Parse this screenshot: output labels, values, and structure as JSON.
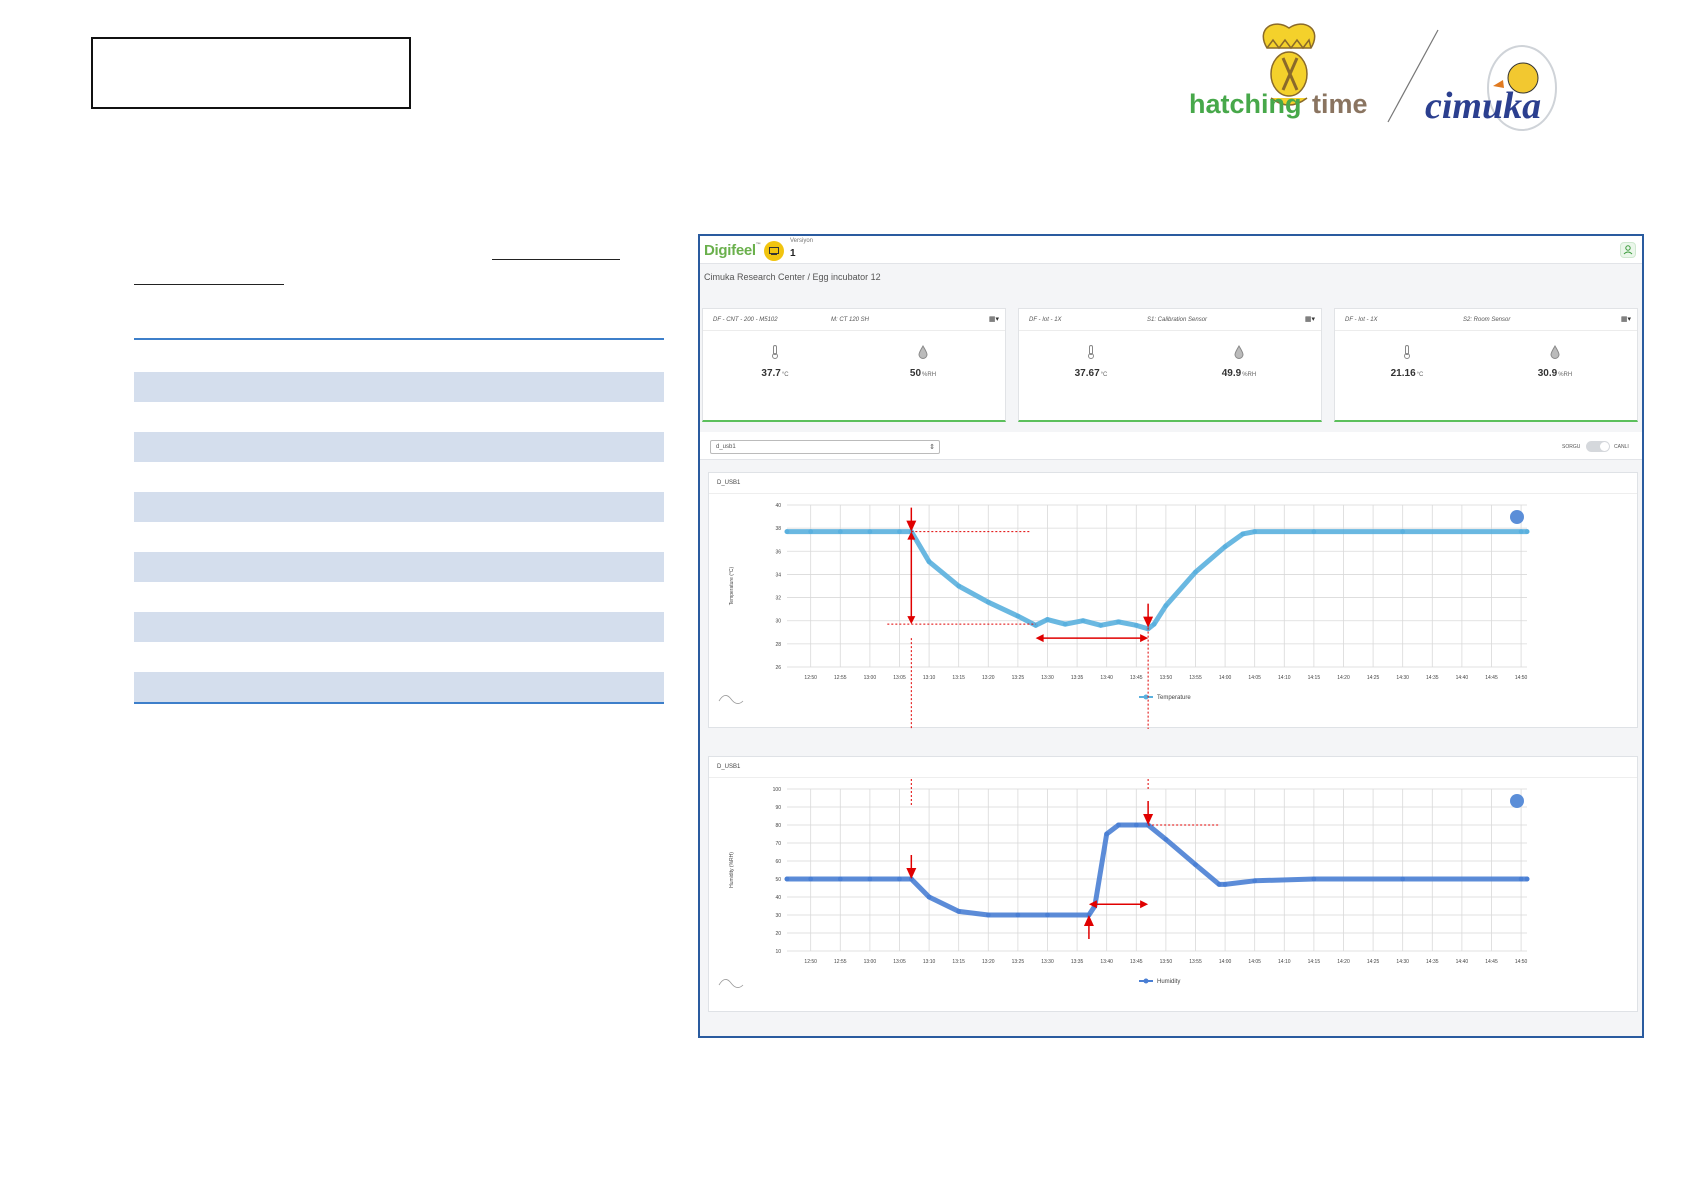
{
  "logos": {
    "hatching_left": "hatching",
    "hatching_right": "time",
    "cimuka": "cimuka"
  },
  "dashboard": {
    "brand": "Digifeel",
    "brand_tm": "™",
    "version_label": "Versiyon",
    "version_value": "1",
    "breadcrumb": "Cimuka Research Center / Egg incubator 12",
    "menu_icon": "grid-icon",
    "cards": [
      {
        "id": "DF - CNT - 200 - M5102",
        "name": "M: CT 120 SH",
        "temp": "37.7",
        "temp_unit": "°C",
        "hum": "50",
        "hum_unit": "%RH"
      },
      {
        "id": "DF - Iot - 1X",
        "name": "S1: Calibration Sensor",
        "temp": "37.67",
        "temp_unit": "°C",
        "hum": "49.9",
        "hum_unit": "%RH"
      },
      {
        "id": "DF - Iot - 1X",
        "name": "S2: Room Sensor",
        "temp": "21.16",
        "temp_unit": "°C",
        "hum": "30.9",
        "hum_unit": "%RH"
      }
    ],
    "select_value": "d_usb1",
    "toggle_left": "SORGU",
    "toggle_right": "CANLI",
    "temp_panel_title": "D_USB1",
    "hum_panel_title": "D_USB1"
  },
  "colors": {
    "temperature_series": "#5ab0de",
    "humidity_series": "#4a7fd4",
    "annotation": "#e00000",
    "table_shade": "#d4deed",
    "table_rule": "#3d7fca"
  },
  "chart_data": [
    {
      "type": "line",
      "ylabel": "Temperature (°C)",
      "ylim": [
        26,
        40
      ],
      "yticks": [
        "40",
        "38",
        "36",
        "34",
        "32",
        "30",
        "28",
        "26"
      ],
      "categories": [
        "12:50",
        "12:55",
        "13:00",
        "13:05",
        "13:10",
        "13:15",
        "13:20",
        "13:25",
        "13:30",
        "13:35",
        "13:40",
        "13:45",
        "13:50",
        "13:55",
        "14:00",
        "14:05",
        "14:10",
        "14:15",
        "14:20",
        "14:25",
        "14:30",
        "14:35",
        "14:40",
        "14:45",
        "14:50"
      ],
      "series": [
        {
          "name": "Temperature",
          "x": [
            "12:46",
            "12:50",
            "12:55",
            "13:00",
            "13:05",
            "13:07",
            "13:10",
            "13:15",
            "13:20",
            "13:25",
            "13:28",
            "13:30",
            "13:33",
            "13:36",
            "13:39",
            "13:42",
            "13:45",
            "13:47",
            "13:48",
            "13:50",
            "13:55",
            "14:00",
            "14:03",
            "14:05",
            "14:15",
            "14:30",
            "14:50",
            "14:51"
          ],
          "values": [
            37.7,
            37.7,
            37.7,
            37.7,
            37.7,
            37.7,
            35.1,
            33.0,
            31.6,
            30.4,
            29.6,
            30.1,
            29.7,
            30.0,
            29.6,
            29.9,
            29.6,
            29.3,
            29.7,
            31.3,
            34.2,
            36.4,
            37.5,
            37.7,
            37.7,
            37.7,
            37.7,
            37.7
          ]
        }
      ]
    },
    {
      "type": "line",
      "ylabel": "Humidity (%RH)",
      "ylim": [
        10,
        100
      ],
      "yticks": [
        "100",
        "90",
        "80",
        "70",
        "60",
        "50",
        "40",
        "30",
        "20",
        "10"
      ],
      "categories": [
        "12:50",
        "12:55",
        "13:00",
        "13:05",
        "13:10",
        "13:15",
        "13:20",
        "13:25",
        "13:30",
        "13:35",
        "13:40",
        "13:45",
        "13:50",
        "13:55",
        "14:00",
        "14:05",
        "14:10",
        "14:15",
        "14:20",
        "14:25",
        "14:30",
        "14:35",
        "14:40",
        "14:45",
        "14:50"
      ],
      "series": [
        {
          "name": "Humidity",
          "x": [
            "12:46",
            "12:50",
            "12:55",
            "13:00",
            "13:05",
            "13:07",
            "13:10",
            "13:15",
            "13:20",
            "13:25",
            "13:30",
            "13:37",
            "13:38",
            "13:40",
            "13:42",
            "13:45",
            "13:47",
            "13:50",
            "13:55",
            "13:59",
            "14:00",
            "14:05",
            "14:15",
            "14:30",
            "14:50",
            "14:51"
          ],
          "values": [
            50,
            50,
            50,
            50,
            50,
            50,
            40,
            32,
            30,
            30,
            30,
            30,
            35,
            75,
            80,
            80,
            80,
            72,
            58,
            47,
            47,
            49,
            50,
            50,
            50,
            50
          ]
        }
      ]
    }
  ]
}
